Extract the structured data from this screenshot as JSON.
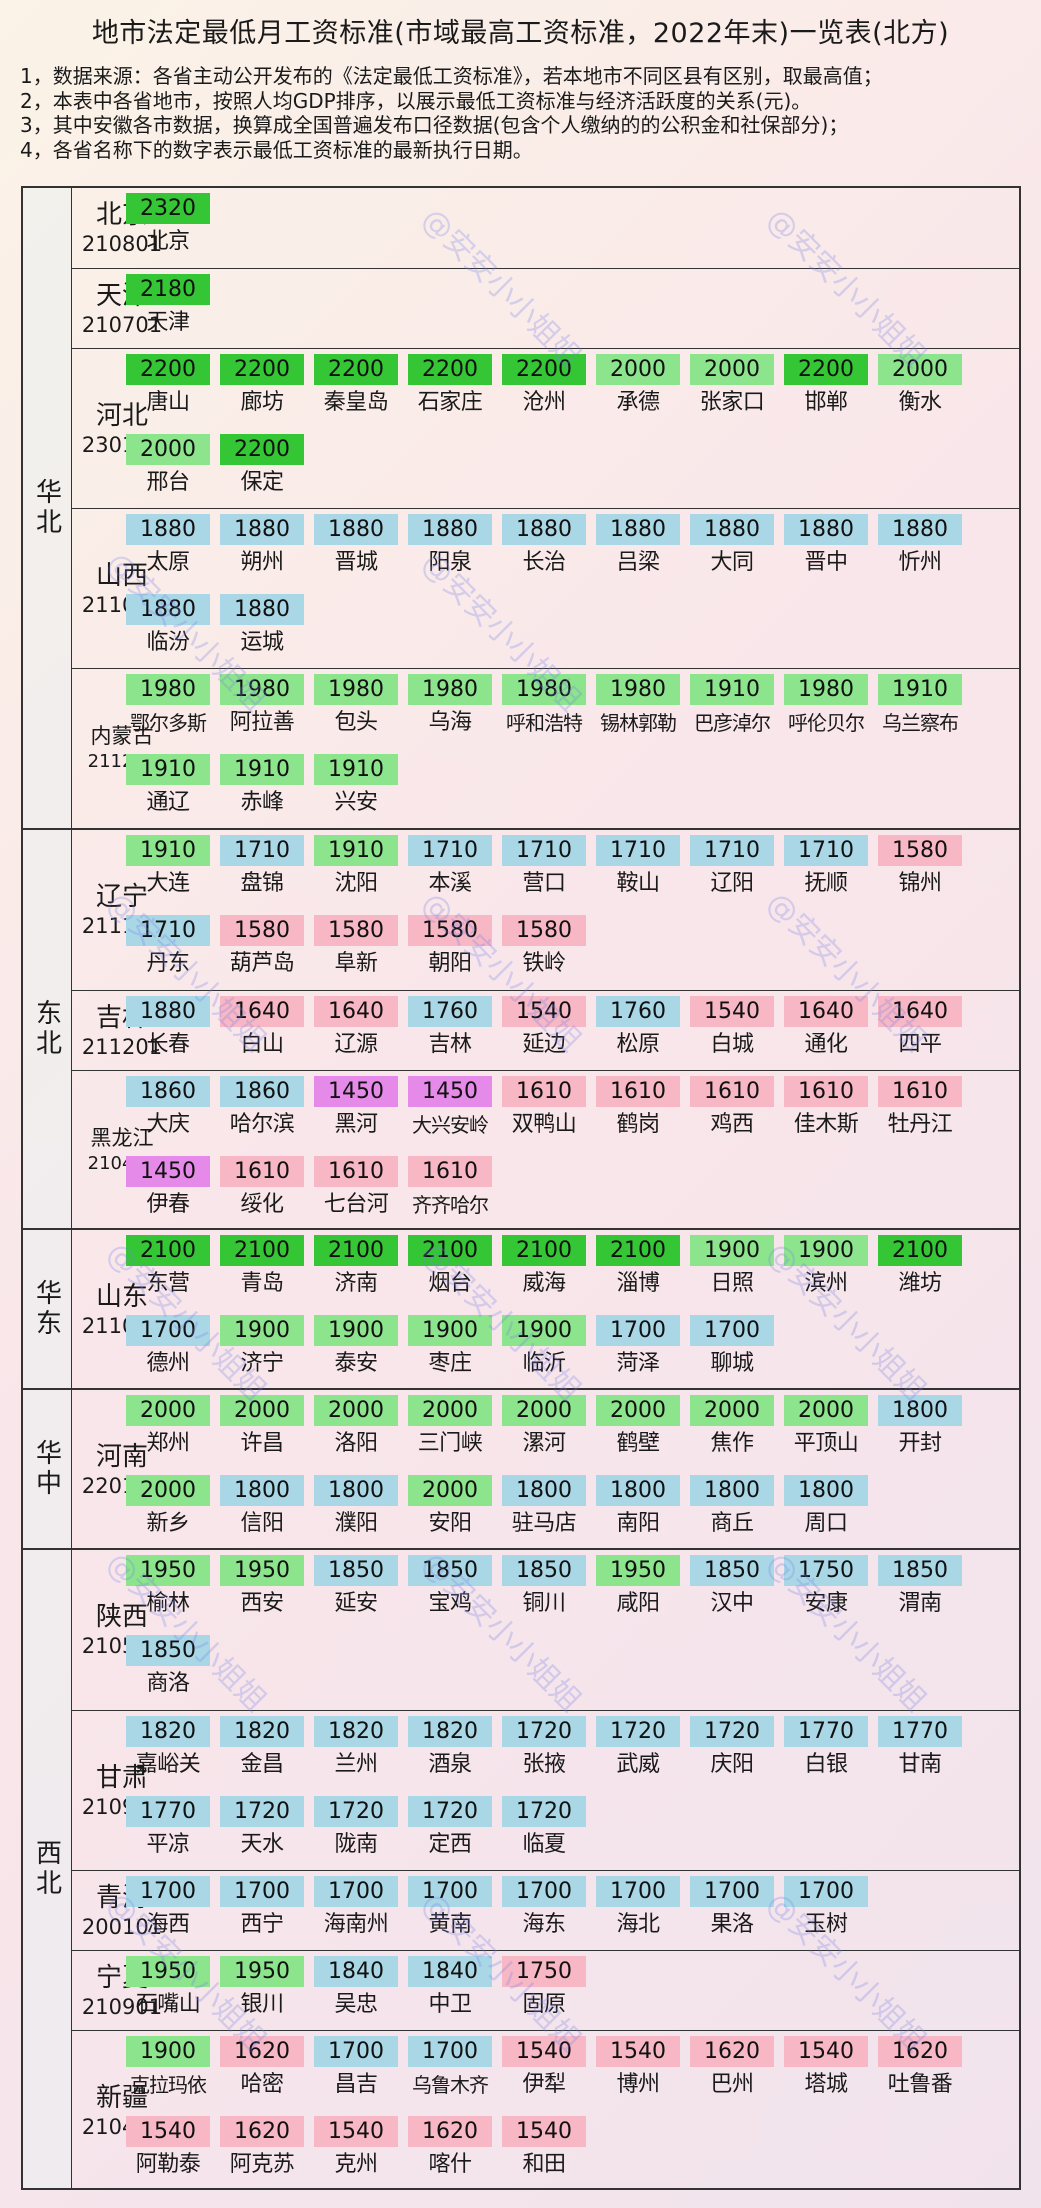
{
  "title": "地市法定最低月工资标准(市域最高工资标准，2022年末)一览表(北方)",
  "notes": [
    "1，数据来源：各省主动公开发布的《法定最低工资标准》，若本地市不同区县有区别，取最高值；",
    "2，本表中各省地市，按照人均GDP排序，以展示最低工资标准与经济活跃度的关系(元)。",
    "3，其中安徽各市数据，换算成全国普遍发布口径数据(包含个人缴纳的的公积金和社保部分)；",
    "4，各省名称下的数字表示最低工资标准的最新执行日期。"
  ],
  "watermark": "@安安小小姐姐",
  "colors": {
    "dark_green": "#34c634",
    "light_green": "#8ce48c",
    "blue": "#a9d7e6",
    "pink": "#f7b7c5",
    "magenta": "#e58ae8"
  },
  "regions": [
    {
      "name": "华北",
      "provinces": [
        {
          "name": "北京",
          "date": "210801",
          "cities": [
            [
              "2320",
              "北京",
              "dg"
            ]
          ]
        },
        {
          "name": "天津",
          "date": "210701",
          "cities": [
            [
              "2180",
              "天津",
              "dg"
            ]
          ]
        },
        {
          "name": "河北",
          "date": "230101",
          "cities": [
            [
              "2200",
              "唐山",
              "dg"
            ],
            [
              "2200",
              "廊坊",
              "dg"
            ],
            [
              "2200",
              "秦皇岛",
              "dg"
            ],
            [
              "2200",
              "石家庄",
              "dg"
            ],
            [
              "2200",
              "沧州",
              "dg"
            ],
            [
              "2000",
              "承德",
              "lg"
            ],
            [
              "2000",
              "张家口",
              "lg"
            ],
            [
              "2200",
              "邯郸",
              "dg"
            ],
            [
              "2000",
              "衡水",
              "lg"
            ],
            [
              "2000",
              "邢台",
              "lg"
            ],
            [
              "2200",
              "保定",
              "dg"
            ]
          ]
        },
        {
          "name": "山西",
          "date": "211001",
          "cities": [
            [
              "1880",
              "太原",
              "bl"
            ],
            [
              "1880",
              "朔州",
              "bl"
            ],
            [
              "1880",
              "晋城",
              "bl"
            ],
            [
              "1880",
              "阳泉",
              "bl"
            ],
            [
              "1880",
              "长治",
              "bl"
            ],
            [
              "1880",
              "吕梁",
              "bl"
            ],
            [
              "1880",
              "大同",
              "bl"
            ],
            [
              "1880",
              "晋中",
              "bl"
            ],
            [
              "1880",
              "忻州",
              "bl"
            ],
            [
              "1880",
              "临汾",
              "bl"
            ],
            [
              "1880",
              "运城",
              "bl"
            ]
          ]
        },
        {
          "name": "内蒙古",
          "date": "211201",
          "cities": [
            [
              "1980",
              "鄂尔多斯",
              "lg"
            ],
            [
              "1980",
              "阿拉善",
              "lg"
            ],
            [
              "1980",
              "包头",
              "lg"
            ],
            [
              "1980",
              "乌海",
              "lg"
            ],
            [
              "1980",
              "呼和浩特",
              "lg"
            ],
            [
              "1980",
              "锡林郭勒",
              "lg"
            ],
            [
              "1910",
              "巴彦淖尔",
              "lg"
            ],
            [
              "1980",
              "呼伦贝尔",
              "lg"
            ],
            [
              "1910",
              "乌兰察布",
              "lg"
            ],
            [
              "1910",
              "通辽",
              "lg"
            ],
            [
              "1910",
              "赤峰",
              "lg"
            ],
            [
              "1910",
              "兴安",
              "lg"
            ]
          ]
        }
      ]
    },
    {
      "name": "东北",
      "provinces": [
        {
          "name": "辽宁",
          "date": "211101",
          "cities": [
            [
              "1910",
              "大连",
              "lg"
            ],
            [
              "1710",
              "盘锦",
              "bl"
            ],
            [
              "1910",
              "沈阳",
              "lg"
            ],
            [
              "1710",
              "本溪",
              "bl"
            ],
            [
              "1710",
              "营口",
              "bl"
            ],
            [
              "1710",
              "鞍山",
              "bl"
            ],
            [
              "1710",
              "辽阳",
              "bl"
            ],
            [
              "1710",
              "抚顺",
              "bl"
            ],
            [
              "1580",
              "锦州",
              "pk"
            ],
            [
              "1710",
              "丹东",
              "bl"
            ],
            [
              "1580",
              "葫芦岛",
              "pk"
            ],
            [
              "1580",
              "阜新",
              "pk"
            ],
            [
              "1580",
              "朝阳",
              "pk"
            ],
            [
              "1580",
              "铁岭",
              "pk"
            ]
          ]
        },
        {
          "name": "吉林",
          "date": "211201",
          "cities": [
            [
              "1880",
              "长春",
              "bl"
            ],
            [
              "1640",
              "白山",
              "pk"
            ],
            [
              "1640",
              "辽源",
              "pk"
            ],
            [
              "1760",
              "吉林",
              "bl"
            ],
            [
              "1540",
              "延边",
              "pk"
            ],
            [
              "1760",
              "松原",
              "bl"
            ],
            [
              "1540",
              "白城",
              "pk"
            ],
            [
              "1640",
              "通化",
              "pk"
            ],
            [
              "1640",
              "四平",
              "pk"
            ]
          ]
        },
        {
          "name": "黑龙江",
          "date": "210401",
          "cities": [
            [
              "1860",
              "大庆",
              "bl"
            ],
            [
              "1860",
              "哈尔滨",
              "bl"
            ],
            [
              "1450",
              "黑河",
              "mg"
            ],
            [
              "1450",
              "大兴安岭",
              "mg"
            ],
            [
              "1610",
              "双鸭山",
              "pk"
            ],
            [
              "1610",
              "鹤岗",
              "pk"
            ],
            [
              "1610",
              "鸡西",
              "pk"
            ],
            [
              "1610",
              "佳木斯",
              "pk"
            ],
            [
              "1610",
              "牡丹江",
              "pk"
            ],
            [
              "1450",
              "伊春",
              "mg"
            ],
            [
              "1610",
              "绥化",
              "pk"
            ],
            [
              "1610",
              "七台河",
              "pk"
            ],
            [
              "1610",
              "齐齐哈尔",
              "pk"
            ]
          ]
        }
      ]
    },
    {
      "name": "华东",
      "provinces": [
        {
          "name": "山东",
          "date": "211001",
          "cities": [
            [
              "2100",
              "东营",
              "dg"
            ],
            [
              "2100",
              "青岛",
              "dg"
            ],
            [
              "2100",
              "济南",
              "dg"
            ],
            [
              "2100",
              "烟台",
              "dg"
            ],
            [
              "2100",
              "威海",
              "dg"
            ],
            [
              "2100",
              "淄博",
              "dg"
            ],
            [
              "1900",
              "日照",
              "lg"
            ],
            [
              "1900",
              "滨州",
              "lg"
            ],
            [
              "2100",
              "潍坊",
              "dg"
            ],
            [
              "1700",
              "德州",
              "bl"
            ],
            [
              "1900",
              "济宁",
              "lg"
            ],
            [
              "1900",
              "泰安",
              "lg"
            ],
            [
              "1900",
              "枣庄",
              "lg"
            ],
            [
              "1900",
              "临沂",
              "lg"
            ],
            [
              "1700",
              "菏泽",
              "bl"
            ],
            [
              "1700",
              "聊城",
              "bl"
            ]
          ]
        }
      ]
    },
    {
      "name": "华中",
      "provinces": [
        {
          "name": "河南",
          "date": "220101",
          "cities": [
            [
              "2000",
              "郑州",
              "lg"
            ],
            [
              "2000",
              "许昌",
              "lg"
            ],
            [
              "2000",
              "洛阳",
              "lg"
            ],
            [
              "2000",
              "三门峡",
              "lg"
            ],
            [
              "2000",
              "漯河",
              "lg"
            ],
            [
              "2000",
              "鹤壁",
              "lg"
            ],
            [
              "2000",
              "焦作",
              "lg"
            ],
            [
              "2000",
              "平顶山",
              "lg"
            ],
            [
              "1800",
              "开封",
              "bl"
            ],
            [
              "2000",
              "新乡",
              "lg"
            ],
            [
              "1800",
              "信阳",
              "bl"
            ],
            [
              "1800",
              "濮阳",
              "bl"
            ],
            [
              "2000",
              "安阳",
              "lg"
            ],
            [
              "1800",
              "驻马店",
              "bl"
            ],
            [
              "1800",
              "南阳",
              "bl"
            ],
            [
              "1800",
              "商丘",
              "bl"
            ],
            [
              "1800",
              "周口",
              "bl"
            ]
          ]
        }
      ]
    },
    {
      "name": "西北",
      "provinces": [
        {
          "name": "陕西",
          "date": "210501",
          "cities": [
            [
              "1950",
              "榆林",
              "lg"
            ],
            [
              "1950",
              "西安",
              "lg"
            ],
            [
              "1850",
              "延安",
              "bl"
            ],
            [
              "1850",
              "宝鸡",
              "bl"
            ],
            [
              "1850",
              "铜川",
              "bl"
            ],
            [
              "1950",
              "咸阳",
              "lg"
            ],
            [
              "1850",
              "汉中",
              "bl"
            ],
            [
              "1750",
              "安康",
              "bl"
            ],
            [
              "1850",
              "渭南",
              "bl"
            ],
            [
              "1850",
              "商洛",
              "bl"
            ]
          ]
        },
        {
          "name": "甘肃",
          "date": "210901",
          "cities": [
            [
              "1820",
              "嘉峪关",
              "bl"
            ],
            [
              "1820",
              "金昌",
              "bl"
            ],
            [
              "1820",
              "兰州",
              "bl"
            ],
            [
              "1820",
              "酒泉",
              "bl"
            ],
            [
              "1720",
              "张掖",
              "bl"
            ],
            [
              "1720",
              "武威",
              "bl"
            ],
            [
              "1720",
              "庆阳",
              "bl"
            ],
            [
              "1770",
              "白银",
              "bl"
            ],
            [
              "1770",
              "甘南",
              "bl"
            ],
            [
              "1770",
              "平凉",
              "bl"
            ],
            [
              "1720",
              "天水",
              "bl"
            ],
            [
              "1720",
              "陇南",
              "bl"
            ],
            [
              "1720",
              "定西",
              "bl"
            ],
            [
              "1720",
              "临夏",
              "bl"
            ]
          ]
        },
        {
          "name": "青海",
          "date": "200101",
          "cities": [
            [
              "1700",
              "海西",
              "bl"
            ],
            [
              "1700",
              "西宁",
              "bl"
            ],
            [
              "1700",
              "海南州",
              "bl"
            ],
            [
              "1700",
              "黄南",
              "bl"
            ],
            [
              "1700",
              "海东",
              "bl"
            ],
            [
              "1700",
              "海北",
              "bl"
            ],
            [
              "1700",
              "果洛",
              "bl"
            ],
            [
              "1700",
              "玉树",
              "bl"
            ]
          ]
        },
        {
          "name": "宁夏",
          "date": "210901",
          "cities": [
            [
              "1950",
              "石嘴山",
              "lg"
            ],
            [
              "1950",
              "银川",
              "lg"
            ],
            [
              "1840",
              "吴忠",
              "bl"
            ],
            [
              "1840",
              "中卫",
              "bl"
            ],
            [
              "1750",
              "固原",
              "pk"
            ]
          ]
        },
        {
          "name": "新疆",
          "date": "210401",
          "cities": [
            [
              "1900",
              "克拉玛依",
              "lg"
            ],
            [
              "1620",
              "哈密",
              "pk"
            ],
            [
              "1700",
              "昌吉",
              "bl"
            ],
            [
              "1700",
              "乌鲁木齐",
              "bl"
            ],
            [
              "1540",
              "伊犁",
              "pk"
            ],
            [
              "1540",
              "博州",
              "pk"
            ],
            [
              "1620",
              "巴州",
              "pk"
            ],
            [
              "1540",
              "塔城",
              "pk"
            ],
            [
              "1620",
              "吐鲁番",
              "pk"
            ],
            [
              "1540",
              "阿勒泰",
              "pk"
            ],
            [
              "1620",
              "阿克苏",
              "pk"
            ],
            [
              "1540",
              "克州",
              "pk"
            ],
            [
              "1620",
              "喀什",
              "pk"
            ],
            [
              "1540",
              "和田",
              "pk"
            ]
          ]
        }
      ]
    }
  ]
}
